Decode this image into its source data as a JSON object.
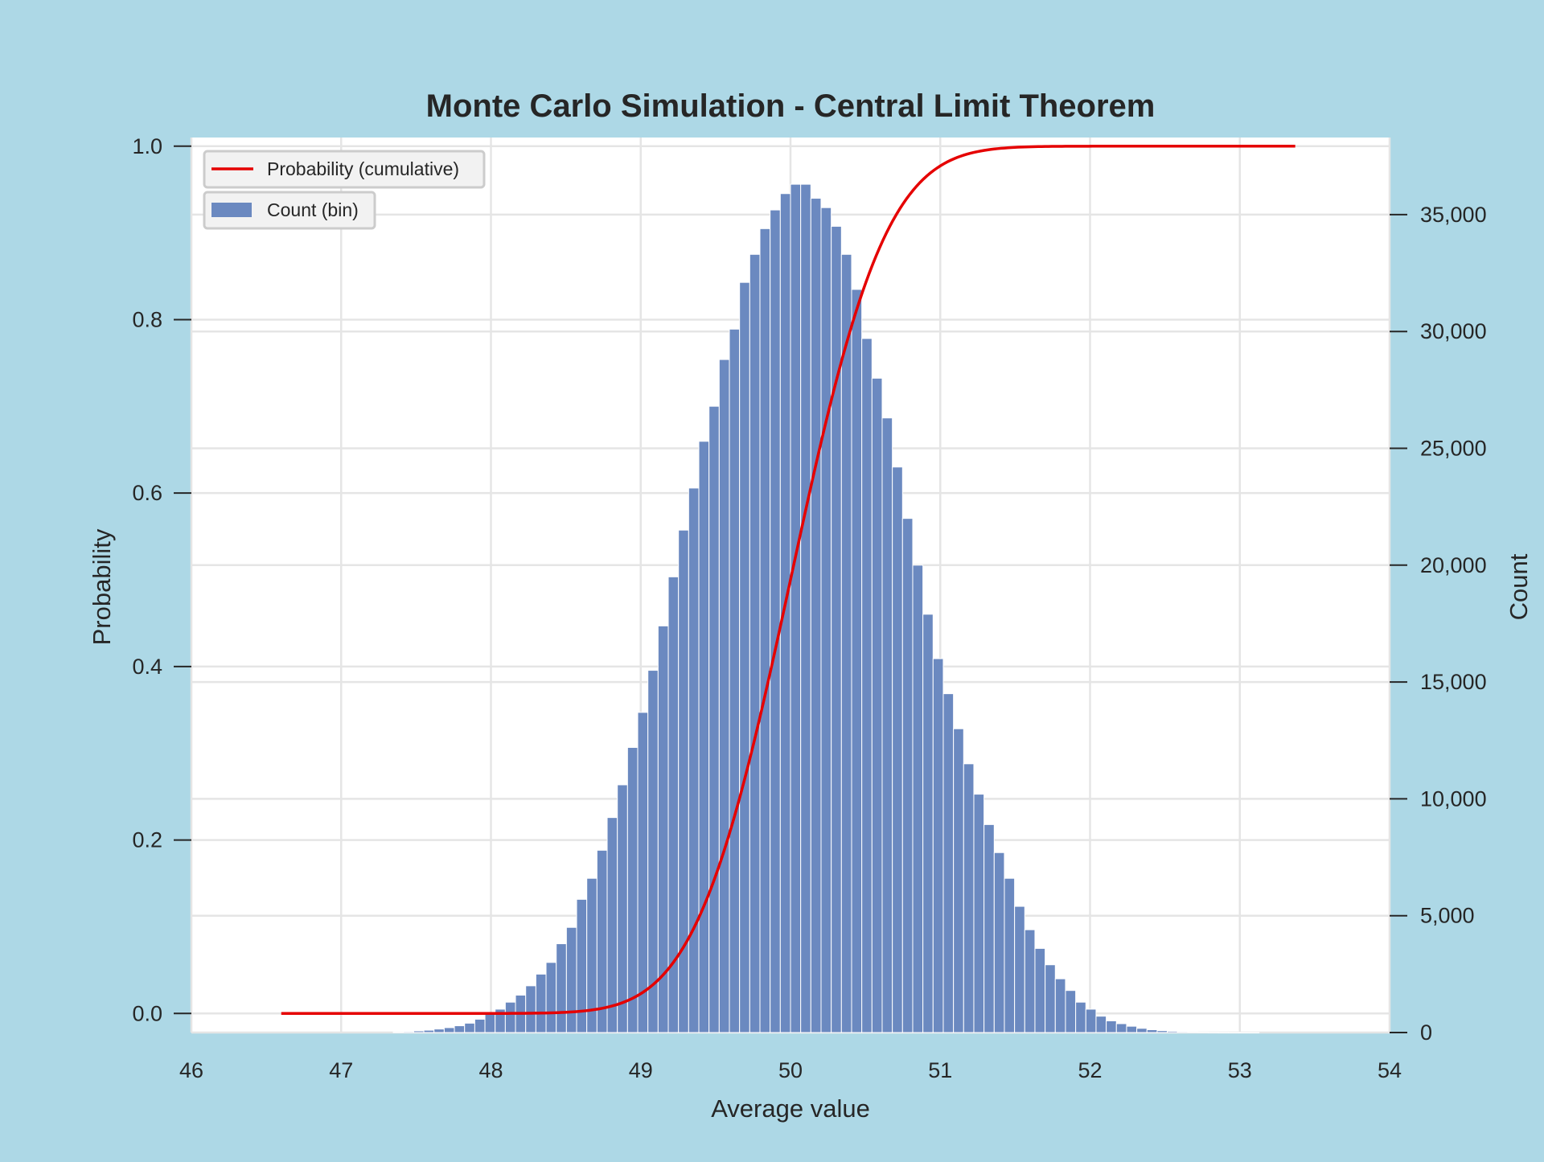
{
  "colors": {
    "page_background": "#add8e6",
    "plot_background": "#ffffff",
    "grid": "#e5e5e5",
    "bar_fill": "#6b89c0",
    "bar_edge": "#ffffff",
    "cumulative_line": "#e50000",
    "text": "#262626"
  },
  "chart_data": {
    "type": "bar",
    "title": "Monte Carlo Simulation - Central Limit Theorem",
    "xlabel": "Average value",
    "ylabel_left": "Probability",
    "ylabel_right": "Count",
    "xlim": [
      46,
      54
    ],
    "ylim_left": [
      -0.022,
      1.01
    ],
    "ylim_right": [
      0,
      38300
    ],
    "x_ticks": [
      "46",
      "47",
      "48",
      "49",
      "50",
      "51",
      "52",
      "53",
      "54"
    ],
    "y_ticks_left": [
      "0.0",
      "0.2",
      "0.4",
      "0.6",
      "0.8",
      "1.0"
    ],
    "y_ticks_right": [
      "0",
      "5,000",
      "10,000",
      "15,000",
      "20,000",
      "25,000",
      "30,000",
      "35,000"
    ],
    "grid": true,
    "legend_position": "top-left",
    "legend": [
      "Probability (cumulative)",
      "Count (bin)"
    ],
    "series": [
      {
        "name": "Count (bin)",
        "type": "bar",
        "bin_start": 46.6,
        "bin_width": 0.068,
        "values": [
          0,
          0,
          0,
          0,
          0,
          0,
          0,
          0,
          0,
          0,
          0,
          25,
          40,
          70,
          100,
          150,
          210,
          290,
          400,
          570,
          800,
          1000,
          1300,
          1600,
          2000,
          2500,
          3000,
          3800,
          4500,
          5700,
          6600,
          7800,
          9200,
          10600,
          12200,
          13700,
          15500,
          17400,
          19500,
          21500,
          23300,
          25300,
          26800,
          28800,
          30100,
          32100,
          33300,
          34400,
          35200,
          35900,
          36300,
          36300,
          35700,
          35300,
          34500,
          33300,
          31800,
          29700,
          28000,
          26300,
          24200,
          22000,
          20000,
          17900,
          16000,
          14500,
          13000,
          11500,
          10200,
          8900,
          7700,
          6600,
          5400,
          4400,
          3600,
          2900,
          2300,
          1800,
          1300,
          1000,
          700,
          500,
          380,
          270,
          180,
          120,
          80,
          55,
          38,
          25,
          15,
          9,
          5,
          3,
          2,
          1,
          0,
          0,
          0,
          0,
          0
        ]
      },
      {
        "name": "Probability (cumulative)",
        "type": "line",
        "x_start": 46.6,
        "x_end": 53.37,
        "mean": 50.0,
        "std": 0.5
      }
    ]
  }
}
